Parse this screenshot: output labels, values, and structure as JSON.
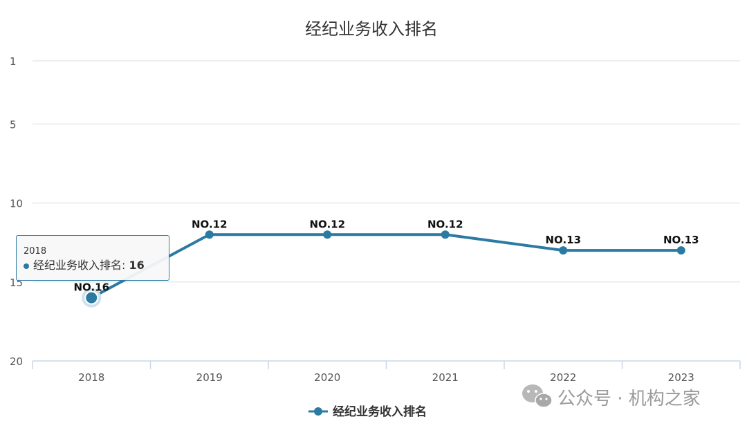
{
  "chart_data": {
    "type": "line",
    "title": "经纪业务收入排名",
    "categories": [
      "2018",
      "2019",
      "2020",
      "2021",
      "2022",
      "2023"
    ],
    "series": [
      {
        "name": "经纪业务收入排名",
        "values": [
          16,
          12,
          12,
          12,
          13,
          13
        ],
        "data_labels": [
          "NO.16",
          "NO.12",
          "NO.12",
          "NO.12",
          "NO.13",
          "NO.13"
        ]
      }
    ],
    "yaxis": {
      "reversed": true,
      "ylim": [
        1,
        20
      ],
      "ticks": [
        "1",
        "5",
        "10",
        "15",
        "20"
      ]
    },
    "grid": true,
    "legend": "bottom-center",
    "colors": {
      "series": "#2b7aa1",
      "grid": "#e6e9ee",
      "axis": "#c8d7e6"
    }
  },
  "tooltip": {
    "category": "2018",
    "series_label": "经纪业务收入排名:",
    "value": "16"
  },
  "watermark": {
    "text": "公众号 · 机构之家",
    "icon": "wechat-icon"
  }
}
